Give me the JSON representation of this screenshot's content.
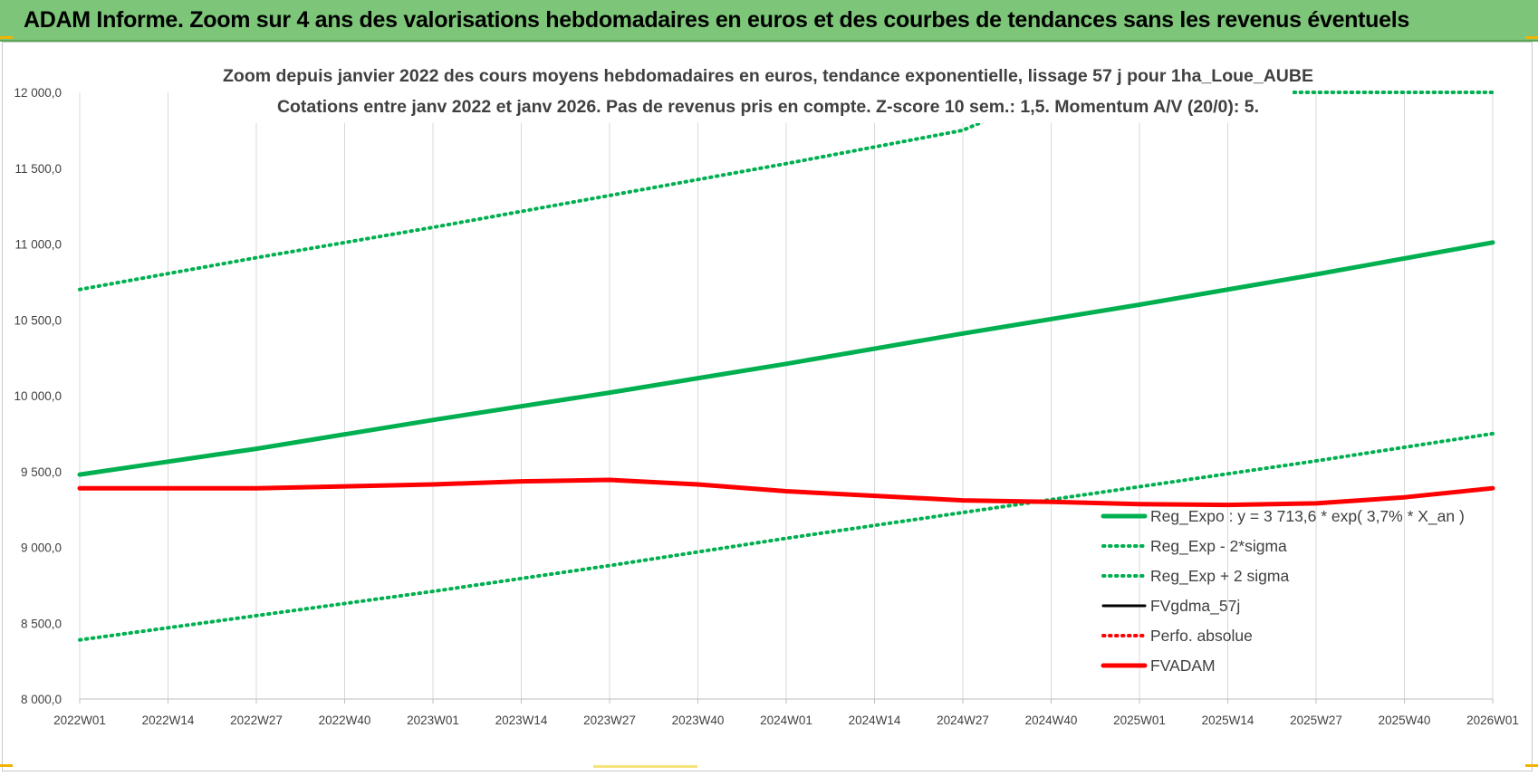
{
  "header": {
    "title": "ADAM Informe. Zoom sur 4 ans des valorisations hebdomadaires en euros et des courbes de tendances sans les revenus éventuels"
  },
  "colors": {
    "banner": "#7dc679",
    "trend": "#00b050",
    "fv": "#ff0000",
    "fvgdma": "#000000",
    "grid": "#d9d9d9",
    "text": "#404040"
  },
  "chart_data": {
    "type": "line",
    "title": "Zoom depuis janvier 2022 des cours moyens hebdomadaires en euros, tendance exponentielle, lissage 57 j pour 1ha_Loue_AUBE",
    "subtitle": "Cotations entre janv 2022 et janv 2026. Pas de revenus pris en compte. Z-score 10 sem.: 1,5. Momentum A/V (20/0): 5.",
    "x_ticks": [
      "2022W01",
      "2022W14",
      "2022W27",
      "2022W40",
      "2023W01",
      "2023W14",
      "2023W27",
      "2023W40",
      "2024W01",
      "2024W14",
      "2024W27",
      "2024W40",
      "2025W01",
      "2025W14",
      "2025W27",
      "2025W40",
      "2026W01"
    ],
    "y_ticks": [
      "12 000,0",
      "11 500,0",
      "11 000,0",
      "10 500,0",
      "10 000,0",
      "9 500,0",
      "9 000,0",
      "8 500,0",
      "8 000,0"
    ],
    "ylim": [
      8000,
      12000
    ],
    "grid": "vertical",
    "legend_position": "right",
    "series": [
      {
        "name": "Reg_Expo : y = 3 713,6 * exp( 3,7% * X_an )",
        "color": "#00b050",
        "style": "solid-thick",
        "x": [
          "2022W01",
          "2022W27",
          "2023W01",
          "2023W27",
          "2024W01",
          "2024W27",
          "2025W01",
          "2025W27",
          "2026W01"
        ],
        "values": [
          9480,
          9650,
          9840,
          10020,
          10210,
          10410,
          10600,
          10800,
          11010
        ]
      },
      {
        "name": "Reg_Exp - 2*sigma",
        "color": "#00b050",
        "style": "dotted",
        "x": [
          "2022W01",
          "2022W27",
          "2023W01",
          "2023W27",
          "2024W01",
          "2024W27",
          "2025W01",
          "2025W27",
          "2026W01"
        ],
        "values": [
          8390,
          8550,
          8710,
          8880,
          9060,
          9230,
          9400,
          9570,
          9750
        ]
      },
      {
        "name": "Reg_Exp + 2 sigma",
        "color": "#00b050",
        "style": "dotted",
        "x": [
          "2022W01",
          "2022W27",
          "2023W01",
          "2023W27",
          "2024W01",
          "2024W27",
          "2024W40",
          "2025W14",
          "2026W01"
        ],
        "values": [
          10700,
          10910,
          11110,
          11320,
          11530,
          11750,
          12000,
          12000,
          12000
        ]
      },
      {
        "name": "FVgdma_57j",
        "color": "#000000",
        "style": "solid",
        "x": [
          "2022W01",
          "2022W27",
          "2023W01",
          "2023W14",
          "2023W27",
          "2023W40",
          "2024W01",
          "2024W27",
          "2024W40",
          "2025W01",
          "2025W14",
          "2025W27",
          "2025W40",
          "2026W01"
        ],
        "values": [
          9390,
          9390,
          9415,
          9435,
          9445,
          9415,
          9370,
          9310,
          9300,
          9285,
          9280,
          9290,
          9330,
          9390
        ]
      },
      {
        "name": "Perfo. absolue",
        "color": "#ff0000",
        "style": "dotted",
        "x": [],
        "values": []
      },
      {
        "name": "FVADAM",
        "color": "#ff0000",
        "style": "solid-thick",
        "x": [
          "2022W01",
          "2022W27",
          "2023W01",
          "2023W14",
          "2023W27",
          "2023W40",
          "2024W01",
          "2024W27",
          "2024W40",
          "2025W01",
          "2025W14",
          "2025W27",
          "2025W40",
          "2026W01"
        ],
        "values": [
          9390,
          9390,
          9415,
          9435,
          9445,
          9415,
          9370,
          9310,
          9300,
          9285,
          9280,
          9290,
          9330,
          9390
        ]
      }
    ]
  }
}
